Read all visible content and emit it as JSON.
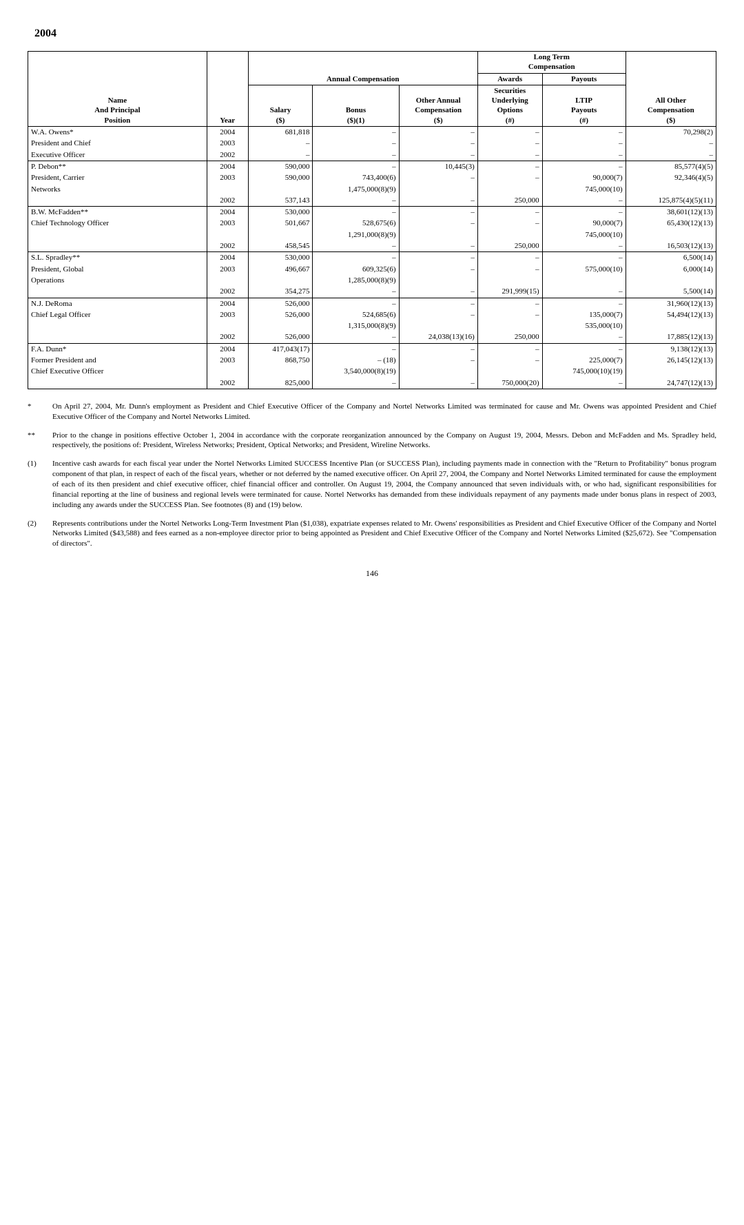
{
  "year_heading": "2004",
  "headers": {
    "longterm_comp": "Long Term\nCompensation",
    "awards": "Awards",
    "payouts": "Payouts",
    "annual_comp": "Annual Compensation",
    "name": "Name\nAnd Principal\nPosition",
    "year": "Year",
    "salary": "Salary\n($)",
    "bonus": "Bonus\n($)(1)",
    "other_annual": "Other Annual\nCompensation\n($)",
    "securities": "Securities\nUnderlying\nOptions\n(#)",
    "ltip": "LTIP\nPayouts\n(#)",
    "allother": "All Other\nCompensation\n($)"
  },
  "people": [
    {
      "name_lines": [
        "W.A. Owens*",
        "President and Chief",
        "Executive Officer"
      ],
      "rows": [
        {
          "year": "2004",
          "salary": "681,818",
          "bonus": "–",
          "other": "–",
          "sec": "–",
          "ltip": "–",
          "allother": "70,298(2)"
        },
        {
          "year": "2003",
          "salary": "–",
          "bonus": "–",
          "other": "–",
          "sec": "–",
          "ltip": "–",
          "allother": "–"
        },
        {
          "year": "2002",
          "salary": "–",
          "bonus": "–",
          "other": "–",
          "sec": "–",
          "ltip": "–",
          "allother": "–"
        }
      ]
    },
    {
      "name_lines": [
        "P. Debon**",
        "President, Carrier",
        "Networks"
      ],
      "rows": [
        {
          "year": "2004",
          "salary": "590,000",
          "bonus": "–",
          "other": "10,445(3)",
          "sec": "–",
          "ltip": "–",
          "allother": "85,577(4)(5)"
        },
        {
          "year": "2003",
          "salary": "590,000",
          "bonus": "743,400(6)\n1,475,000(8)(9)",
          "other": "–",
          "sec": "–",
          "ltip": "90,000(7)\n745,000(10)",
          "allother": "92,346(4)(5)"
        },
        {
          "year": "2002",
          "salary": "537,143",
          "bonus": "–",
          "other": "–",
          "sec": "250,000",
          "ltip": "–",
          "allother": "125,875(4)(5)(11)"
        }
      ]
    },
    {
      "name_lines": [
        "B.W. McFadden**",
        "Chief Technology Officer"
      ],
      "rows": [
        {
          "year": "2004",
          "salary": "530,000",
          "bonus": "–",
          "other": "–",
          "sec": "–",
          "ltip": "–",
          "allother": "38,601(12)(13)"
        },
        {
          "year": "2003",
          "salary": "501,667",
          "bonus": "528,675(6)\n1,291,000(8)(9)",
          "other": "–",
          "sec": "–",
          "ltip": "90,000(7)\n745,000(10)",
          "allother": "65,430(12)(13)"
        },
        {
          "year": "2002",
          "salary": "458,545",
          "bonus": "–",
          "other": "–",
          "sec": "250,000",
          "ltip": "–",
          "allother": "16,503(12)(13)"
        }
      ]
    },
    {
      "name_lines": [
        "S.L. Spradley**",
        "President, Global",
        "Operations"
      ],
      "rows": [
        {
          "year": "2004",
          "salary": "530,000",
          "bonus": "–",
          "other": "–",
          "sec": "–",
          "ltip": "–",
          "allother": "6,500(14)"
        },
        {
          "year": "2003",
          "salary": "496,667",
          "bonus": "609,325(6)\n1,285,000(8)(9)",
          "other": "–",
          "sec": "–",
          "ltip": "575,000(10)",
          "allother": "6,000(14)"
        },
        {
          "year": "2002",
          "salary": "354,275",
          "bonus": "–",
          "other": "–",
          "sec": "291,999(15)",
          "ltip": "–",
          "allother": "5,500(14)"
        }
      ]
    },
    {
      "name_lines": [
        "N.J. DeRoma",
        "Chief Legal Officer"
      ],
      "rows": [
        {
          "year": "2004",
          "salary": "526,000",
          "bonus": "–",
          "other": "–",
          "sec": "–",
          "ltip": "–",
          "allother": "31,960(12)(13)"
        },
        {
          "year": "2003",
          "salary": "526,000",
          "bonus": "524,685(6)\n1,315,000(8)(9)",
          "other": "–",
          "sec": "–",
          "ltip": "135,000(7)\n535,000(10)",
          "allother": "54,494(12)(13)"
        },
        {
          "year": "2002",
          "salary": "526,000",
          "bonus": "–",
          "other": "24,038(13)(16)",
          "sec": "250,000",
          "ltip": "–",
          "allother": "17,885(12)(13)"
        }
      ]
    },
    {
      "name_lines": [
        "F.A. Dunn*",
        "Former President and",
        "Chief Executive Officer"
      ],
      "rows": [
        {
          "year": "2004",
          "salary": "417,043(17)",
          "bonus": "–",
          "other": "–",
          "sec": "–",
          "ltip": "–",
          "allother": "9,138(12)(13)"
        },
        {
          "year": "2003",
          "salary": "868,750",
          "bonus": "– (18)\n3,540,000(8)(19)",
          "other": "–",
          "sec": "–",
          "ltip": "225,000(7)\n745,000(10)(19)",
          "allother": "26,145(12)(13)"
        },
        {
          "year": "2002",
          "salary": "825,000",
          "bonus": "–",
          "other": "–",
          "sec": "750,000(20)",
          "ltip": "–",
          "allother": "24,747(12)(13)"
        }
      ]
    }
  ],
  "footnotes": [
    {
      "marker": "*",
      "text": "On April 27, 2004, Mr. Dunn's employment as President and Chief Executive Officer of the Company and Nortel Networks Limited was terminated for cause and Mr. Owens was appointed President and Chief Executive Officer of the Company and Nortel Networks Limited."
    },
    {
      "marker": "**",
      "text": "Prior to the change in positions effective October 1, 2004 in accordance with the corporate reorganization announced by the Company on August 19, 2004, Messrs. Debon and McFadden and Ms. Spradley held, respectively, the positions of: President, Wireless Networks; President, Optical Networks; and President, Wireline Networks."
    },
    {
      "marker": "(1)",
      "text": "Incentive cash awards for each fiscal year under the Nortel Networks Limited SUCCESS Incentive Plan (or SUCCESS Plan), including payments made in connection with the \"Return to Profitability\" bonus program component of that plan, in respect of each of the fiscal years, whether or not deferred by the named executive officer. On April 27, 2004, the Company and Nortel Networks Limited terminated for cause the employment of each of its then president and chief executive officer, chief financial officer and controller. On August 19, 2004, the Company announced that seven individuals with, or who had, significant responsibilities for financial reporting at the line of business and regional levels were terminated for cause. Nortel Networks has demanded from these individuals repayment of any payments made under bonus plans in respect of 2003, including any awards under the SUCCESS Plan. See footnotes (8) and (19) below."
    },
    {
      "marker": "(2)",
      "text": "Represents contributions under the Nortel Networks Long-Term Investment Plan ($1,038), expatriate expenses related to Mr. Owens' responsibilities as President and Chief Executive Officer of the Company and Nortel Networks Limited ($43,588) and fees earned as a non-employee director prior to being appointed as President and Chief Executive Officer of the Company and Nortel Networks Limited ($25,672). See \"Compensation of directors\"."
    }
  ],
  "page_number": "146"
}
